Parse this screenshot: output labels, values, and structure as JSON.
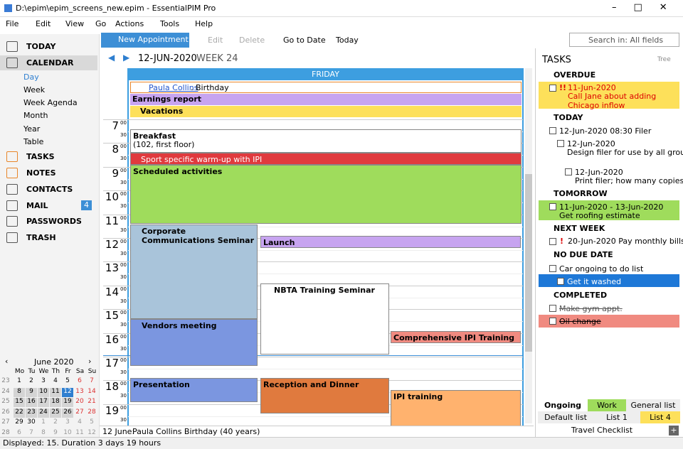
{
  "window": {
    "title": "D:\\epim\\epim_screens_new.epim - EssentialPIM Pro"
  },
  "menu": [
    "File",
    "Edit",
    "View",
    "Go",
    "Actions",
    "Tools",
    "Help"
  ],
  "toolbar": {
    "new_appointment": "New Appointment",
    "edit": "Edit",
    "delete": "Delete",
    "go_to_date": "Go to Date",
    "today": "Today",
    "search": "Search in: All fields"
  },
  "nav": {
    "items": [
      "TODAY",
      "CALENDAR",
      "TASKS",
      "NOTES",
      "CONTACTS",
      "MAIL",
      "PASSWORDS",
      "TRASH"
    ],
    "calendar_views": [
      "Day",
      "Week",
      "Week Agenda",
      "Month",
      "Year",
      "Table"
    ],
    "mail_badge": "4"
  },
  "mini_calendar": {
    "month": "June 2020",
    "weekdays": [
      "Mo",
      "Tu",
      "We",
      "Th",
      "Fr",
      "Sa",
      "Su"
    ],
    "weeks": [
      {
        "number": 23,
        "days": [
          1,
          2,
          3,
          4,
          5,
          6,
          7
        ]
      },
      {
        "number": 24,
        "days": [
          8,
          9,
          10,
          11,
          12,
          13,
          14
        ]
      },
      {
        "number": 25,
        "days": [
          15,
          16,
          17,
          18,
          19,
          20,
          21
        ]
      },
      {
        "number": 26,
        "days": [
          22,
          23,
          24,
          25,
          26,
          27,
          28
        ]
      },
      {
        "number": 27,
        "days": [
          29,
          30,
          1,
          2,
          3,
          4,
          5
        ]
      },
      {
        "number": 28,
        "days": [
          6,
          7,
          8,
          9,
          10,
          11,
          12
        ]
      }
    ]
  },
  "day_view": {
    "date": "12-JUN-2020",
    "week": "WEEK 24",
    "weekday": "FRIDAY",
    "all_day": {
      "birthday_name": "Paula Collins",
      "birthday_suffix": ". Birthday",
      "earnings": "Earnings report",
      "vacations": "Vacations"
    },
    "hours": [
      7,
      8,
      9,
      10,
      11,
      12,
      13,
      14,
      15,
      16,
      17,
      18,
      19
    ],
    "minutes": [
      "00",
      "30"
    ],
    "events": {
      "breakfast": "Breakfast",
      "breakfast_place": "(102, first floor)",
      "sport": "Sport specific warm-up with IPI",
      "scheduled": "Scheduled activities",
      "corporate": "Corporate Communications Seminar",
      "launch": "Launch",
      "nbta": "NBTA Training Seminar",
      "vendors": "Vendors meeting",
      "comprehensive": "Comprehensive IPI Training",
      "presentation": "Presentation",
      "reception": "Reception and Dinner",
      "ipi": "IPI training"
    },
    "footer": {
      "date": "12 June:",
      "text": "Paula Collins Birthday  (40 years)"
    }
  },
  "tasks": {
    "title": "TASKS",
    "mode": "Tree",
    "groups": {
      "overdue": "OVERDUE",
      "today": "TODAY",
      "tomorrow": "TOMORROW",
      "next_week": "NEXT WEEK",
      "no_due": "NO DUE DATE",
      "completed": "COMPLETED"
    },
    "items": {
      "call_date": "11-Jun-2020",
      "call_priority": "!!",
      "call_text": "Call Jane about adding Chicago inflow",
      "filer": "12-Jun-2020 08:30 Filer",
      "design_date": "12-Jun-2020",
      "design_text": "Design filer for use by all groups",
      "print_date": "12-Jun-2020",
      "print_text": "Print filer; how many copies?",
      "roof_date": "11-Jun-2020 - 13-Jun-2020",
      "roof_text": "Get roofing estimate",
      "bills_priority": "!",
      "bills": "20-Jun-2020 Pay monthly bills",
      "car": "Car ongoing to do list",
      "wash": "Get it washed",
      "gym": "Make gym appt.",
      "oil": "Oil change"
    },
    "tabs": [
      "Ongoing",
      "Work",
      "General list",
      "Default list",
      "List 1",
      "List 4",
      "Travel Checklist"
    ]
  },
  "status": "Displayed: 15. Duration 3 days 19 hours"
}
